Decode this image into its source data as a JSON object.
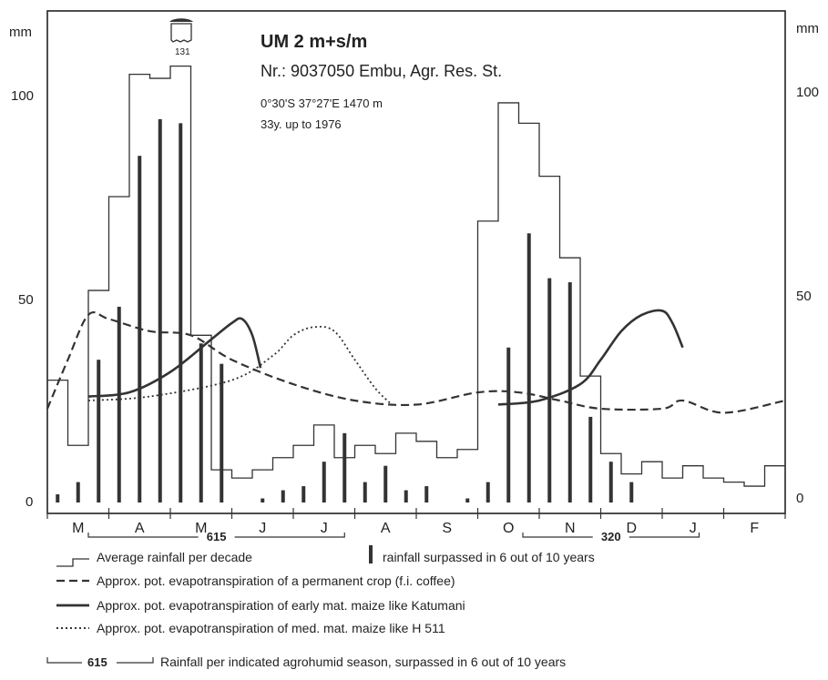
{
  "chart_data": {
    "type": "line",
    "title": "UM 2  m+s/m",
    "station": "Nr.: 9037050 Embu, Agr. Res. St.",
    "coords": "0°30'S  37°27'E   1470 m",
    "period": "33y. up to 1976",
    "y_unit_left": "mm",
    "y_unit_right": "mm",
    "ylim": [
      0,
      110
    ],
    "y_ticks": [
      "0",
      "50",
      "100"
    ],
    "months": [
      "M",
      "A",
      "M",
      "J",
      "J",
      "A",
      "S",
      "O",
      "N",
      "D",
      "J",
      "F"
    ],
    "decade_count": 36,
    "average_rainfall_per_decade": [
      30,
      14,
      52,
      75,
      105,
      104,
      107,
      41,
      8,
      6,
      8,
      11,
      14,
      19,
      11,
      14,
      12,
      17,
      15,
      11,
      13,
      69,
      98,
      93,
      80,
      60,
      31,
      12,
      7,
      10,
      6,
      9,
      6,
      5,
      4,
      9
    ],
    "overflow_marker": "131",
    "rainfall_6_of_10": [
      2,
      5,
      35,
      48,
      85,
      94,
      93,
      39,
      34,
      0,
      1,
      3,
      4,
      10,
      17,
      5,
      9,
      3,
      4,
      0,
      1,
      5,
      38,
      66,
      55,
      54,
      21,
      10,
      5,
      0,
      0,
      0,
      0,
      0,
      0,
      0
    ],
    "pet_permanent_crop": [
      [
        0,
        23
      ],
      [
        1,
        35
      ],
      [
        2,
        46
      ],
      [
        3,
        45
      ],
      [
        5,
        42
      ],
      [
        7,
        41
      ],
      [
        9,
        35
      ],
      [
        12,
        29
      ],
      [
        15,
        25
      ],
      [
        18,
        24
      ],
      [
        21,
        27
      ],
      [
        23,
        27
      ],
      [
        25,
        25
      ],
      [
        27,
        23
      ],
      [
        30,
        23
      ],
      [
        31,
        25
      ],
      [
        33,
        22
      ],
      [
        36,
        25
      ]
    ],
    "pet_early_maize": [
      [
        2,
        26
      ],
      [
        4,
        27
      ],
      [
        6,
        32
      ],
      [
        8,
        40
      ],
      [
        9,
        44
      ],
      [
        9.5,
        45
      ],
      [
        10,
        41
      ],
      [
        10.4,
        33
      ]
    ],
    "pet_early_maize_second": [
      [
        22,
        24
      ],
      [
        24,
        25
      ],
      [
        26,
        29
      ],
      [
        27,
        35
      ],
      [
        28,
        42
      ],
      [
        29,
        46
      ],
      [
        30,
        47
      ],
      [
        30.5,
        44
      ],
      [
        31,
        38
      ]
    ],
    "pet_medium_maize": [
      [
        2,
        25
      ],
      [
        5,
        26
      ],
      [
        9,
        30
      ],
      [
        11,
        36
      ],
      [
        12,
        41
      ],
      [
        13,
        43
      ],
      [
        14,
        42
      ],
      [
        15,
        35
      ],
      [
        16,
        28
      ],
      [
        16.8,
        24
      ]
    ],
    "season_labels": [
      {
        "value": "615",
        "from_decade": 2,
        "to_decade": 14.5
      },
      {
        "value": "320",
        "from_decade": 23.2,
        "to_decade": 31.8
      }
    ],
    "legend": [
      {
        "style": "step",
        "label": "Average rainfall per decade"
      },
      {
        "style": "bar",
        "label": "rainfall surpassed in 6 out of 10 years"
      },
      {
        "style": "dashed",
        "label": "Approx. pot. evapotranspiration of a permanent crop (f.i. coffee)"
      },
      {
        "style": "solid",
        "label": "Approx. pot. evapotranspiration of early mat. maize like Katumani"
      },
      {
        "style": "dotted",
        "label": "Approx. pot. evapotranspiration of med. mat. maize like H 511"
      },
      {
        "style": "bracket",
        "marker": "615",
        "label": "Rainfall per indicated agrohumid season, surpassed in 6 out of 10 years"
      }
    ]
  }
}
